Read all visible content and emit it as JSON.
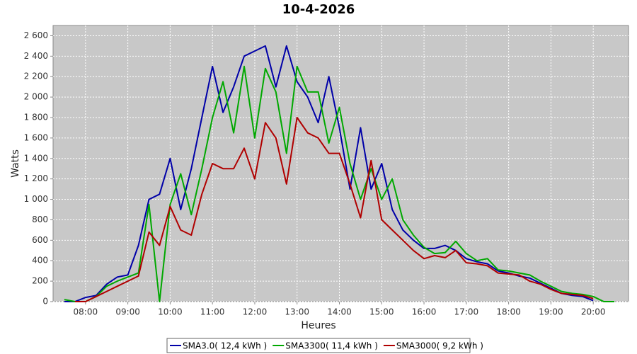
{
  "chart_data": {
    "type": "line",
    "title": "10-4-2026",
    "x_label": "Heures",
    "y_label": "Watts",
    "x": [
      "07:30",
      "07:45",
      "08:00",
      "08:15",
      "08:30",
      "08:45",
      "09:00",
      "09:15",
      "09:30",
      "09:45",
      "10:00",
      "10:15",
      "10:30",
      "10:45",
      "11:00",
      "11:15",
      "11:30",
      "11:45",
      "12:00",
      "12:15",
      "12:30",
      "12:45",
      "13:00",
      "13:15",
      "13:30",
      "13:45",
      "14:00",
      "14:15",
      "14:30",
      "14:45",
      "15:00",
      "15:15",
      "15:30",
      "15:45",
      "16:00",
      "16:15",
      "16:30",
      "16:45",
      "17:00",
      "17:15",
      "17:30",
      "17:45",
      "18:00",
      "18:15",
      "18:30",
      "18:45",
      "19:00",
      "19:15",
      "19:30",
      "19:45",
      "20:00",
      "20:15",
      "20:30",
      "20:45"
    ],
    "series": [
      {
        "name": "SMA3.0( 12,4 kWh )",
        "color": "#0000a8",
        "values": [
          0,
          0,
          40,
          60,
          170,
          240,
          260,
          550,
          1000,
          1050,
          1400,
          900,
          1300,
          1800,
          2300,
          1850,
          2100,
          2400,
          2450,
          2500,
          2100,
          2500,
          2150,
          2000,
          1750,
          2200,
          1700,
          1100,
          1700,
          1100,
          1350,
          900,
          700,
          600,
          520,
          520,
          550,
          500,
          420,
          390,
          370,
          300,
          280,
          250,
          230,
          180,
          130,
          80,
          60,
          50,
          10,
          null,
          null,
          null
        ]
      },
      {
        "name": "SMA3300( 11,4 kWh )",
        "color": "#00a800",
        "values": [
          20,
          0,
          0,
          50,
          150,
          200,
          240,
          280,
          950,
          0,
          950,
          1250,
          850,
          1300,
          1800,
          2150,
          1650,
          2300,
          1600,
          2280,
          2050,
          1450,
          2300,
          2050,
          2050,
          1550,
          1900,
          1350,
          1000,
          1300,
          1000,
          1200,
          800,
          650,
          530,
          470,
          480,
          590,
          470,
          400,
          420,
          310,
          300,
          280,
          260,
          200,
          150,
          100,
          80,
          70,
          50,
          0,
          0,
          null
        ]
      },
      {
        "name": "SMA3000( 9,2 kWh )",
        "color": "#b00000",
        "values": [
          null,
          0,
          0,
          50,
          100,
          150,
          200,
          250,
          680,
          550,
          930,
          700,
          650,
          1050,
          1350,
          1300,
          1300,
          1500,
          1200,
          1750,
          1600,
          1150,
          1800,
          1650,
          1600,
          1450,
          1450,
          1150,
          820,
          1380,
          800,
          700,
          600,
          500,
          420,
          450,
          430,
          500,
          380,
          370,
          350,
          280,
          270,
          260,
          200,
          170,
          120,
          80,
          70,
          60,
          30,
          null,
          null,
          null
        ]
      }
    ],
    "xlim": [
      "07:14",
      "20:50"
    ],
    "xticks": [
      "08:00",
      "09:00",
      "10:00",
      "11:00",
      "12:00",
      "13:00",
      "14:00",
      "15:00",
      "16:00",
      "17:00",
      "18:00",
      "19:00",
      "20:00"
    ],
    "ylim": [
      0,
      2700
    ],
    "yticks": [
      0,
      200,
      400,
      600,
      800,
      {
        "value": 1000,
        "label": "1 000"
      },
      {
        "value": 1200,
        "label": "1 200"
      },
      {
        "value": 1400,
        "label": "1 400"
      },
      {
        "value": 1600,
        "label": "1 600"
      },
      {
        "value": 1800,
        "label": "1 800"
      },
      {
        "value": 2000,
        "label": "2 000"
      },
      {
        "value": 2200,
        "label": "2 200"
      },
      {
        "value": 2400,
        "label": "2 400"
      },
      {
        "value": 2600,
        "label": "2 600"
      }
    ],
    "grid": true,
    "legend": "bottom"
  }
}
